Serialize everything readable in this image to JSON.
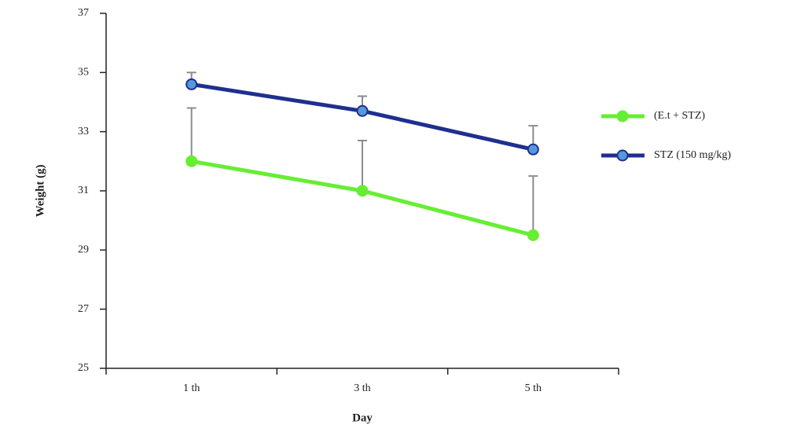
{
  "chart_data": {
    "type": "line",
    "x_label": "Day",
    "y_label": "Weight (g)",
    "categories": [
      "1 th",
      "3 th",
      "5 th"
    ],
    "series": [
      {
        "name": "(E.t + STZ)",
        "color": "#66ee33",
        "values": [
          32.0,
          31.0,
          29.5
        ],
        "errors": [
          1.8,
          1.7,
          2.0
        ]
      },
      {
        "name": "STZ (150 mg/kg)",
        "color": "#1f2f8f",
        "values": [
          34.6,
          33.7,
          32.4
        ],
        "errors": [
          0.4,
          0.5,
          0.8
        ]
      }
    ],
    "ylim": [
      25,
      37
    ],
    "yticks": [
      25,
      27,
      29,
      31,
      33,
      35,
      37
    ],
    "error_bar_color": "#8c8c8c",
    "marker_color": "#5599dd",
    "legend": "right"
  }
}
